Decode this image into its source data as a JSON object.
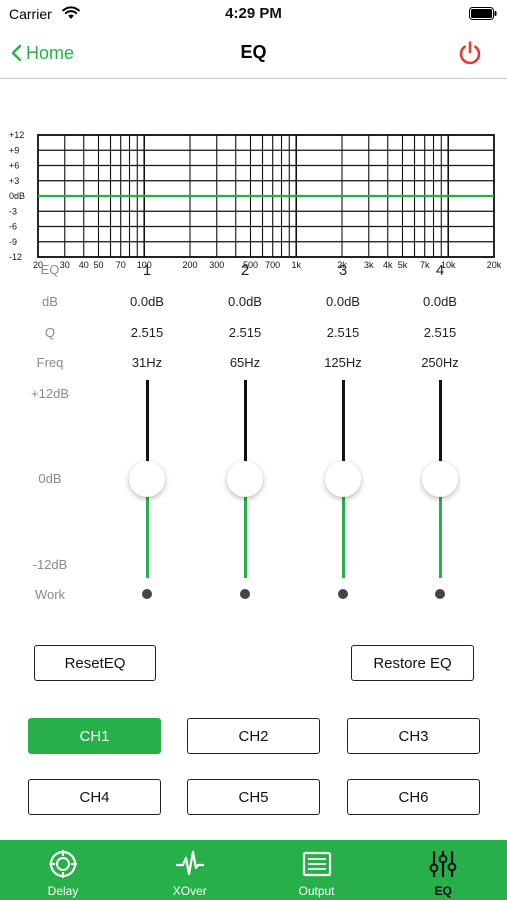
{
  "status_bar": {
    "carrier": "Carrier",
    "time": "4:29 PM"
  },
  "nav": {
    "back_label": "Home",
    "title": "EQ"
  },
  "graph": {
    "y_ticks": [
      "+12",
      "+9",
      "+6",
      "+3",
      "0dB",
      "-3",
      "-6",
      "-9",
      "-12"
    ],
    "x_ticks": [
      "20",
      "30",
      "40",
      "50",
      "70",
      "100",
      "200",
      "300",
      "500",
      "700",
      "1k",
      "2k",
      "3k",
      "4k",
      "5k",
      "7k",
      "10k",
      "20k"
    ],
    "curve_gain_db": 0,
    "colors": {
      "curve": "#27b04a",
      "grid": "#111111"
    }
  },
  "params": {
    "row_labels": {
      "eq": "EQ",
      "db": "dB",
      "q": "Q",
      "freq": "Freq",
      "work": "Work"
    },
    "scale_labels": {
      "top": "+12dB",
      "mid": "0dB",
      "bottom": "-12dB"
    },
    "bands": [
      {
        "number": "1",
        "db": "0.0dB",
        "q": "2.515",
        "freq": "31Hz",
        "gain": 0
      },
      {
        "number": "2",
        "db": "0.0dB",
        "q": "2.515",
        "freq": "65Hz",
        "gain": 0
      },
      {
        "number": "3",
        "db": "0.0dB",
        "q": "2.515",
        "freq": "125Hz",
        "gain": 0
      },
      {
        "number": "4",
        "db": "0.0dB",
        "q": "2.515",
        "freq": "250Hz",
        "gain": 0
      }
    ]
  },
  "actions": {
    "reset_label": "ResetEQ",
    "restore_label": "Restore EQ"
  },
  "channels": [
    {
      "label": "CH1",
      "active": true
    },
    {
      "label": "CH2",
      "active": false
    },
    {
      "label": "CH3",
      "active": false
    },
    {
      "label": "CH4",
      "active": false
    },
    {
      "label": "CH5",
      "active": false
    },
    {
      "label": "CH6",
      "active": false
    }
  ],
  "tabs": [
    {
      "label": "Delay",
      "icon": "delay-icon",
      "active": false
    },
    {
      "label": "XOver",
      "icon": "xover-icon",
      "active": false
    },
    {
      "label": "Output",
      "icon": "output-icon",
      "active": false
    },
    {
      "label": "EQ",
      "icon": "eq-sliders-icon",
      "active": true
    }
  ],
  "colors": {
    "accent": "#27b04a",
    "power": "#e53935"
  }
}
